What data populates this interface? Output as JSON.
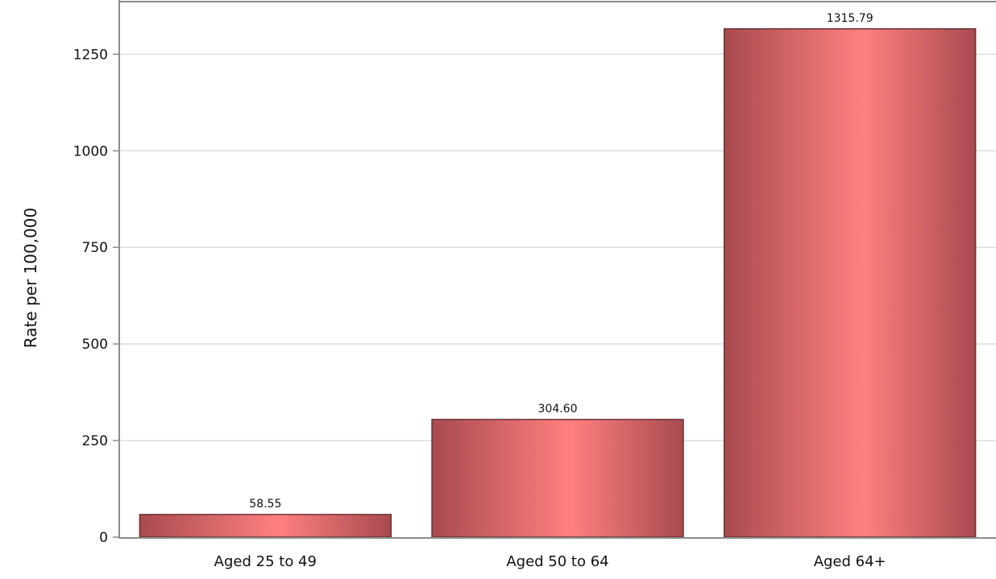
{
  "chart_data": {
    "type": "bar",
    "title": "",
    "xlabel": "",
    "ylabel": "Rate per 100,000",
    "categories": [
      "Aged 25 to 49",
      "Aged 50 to 64",
      "Aged 64+"
    ],
    "values": [
      58.55,
      304.6,
      1315.79
    ],
    "value_labels": [
      "58.55",
      "304.60",
      "1315.79"
    ],
    "ylim": [
      0,
      1380
    ],
    "yticks": [
      0,
      250,
      500,
      750,
      1000,
      1250
    ],
    "grid": true,
    "legend": "none",
    "colors": {
      "bar_edge": "#a84a4f",
      "bar_center": "#ff8080",
      "bar_outline": "#6e2f33",
      "grid": "#dcdcdc",
      "axis": "#8c8c8c"
    }
  }
}
